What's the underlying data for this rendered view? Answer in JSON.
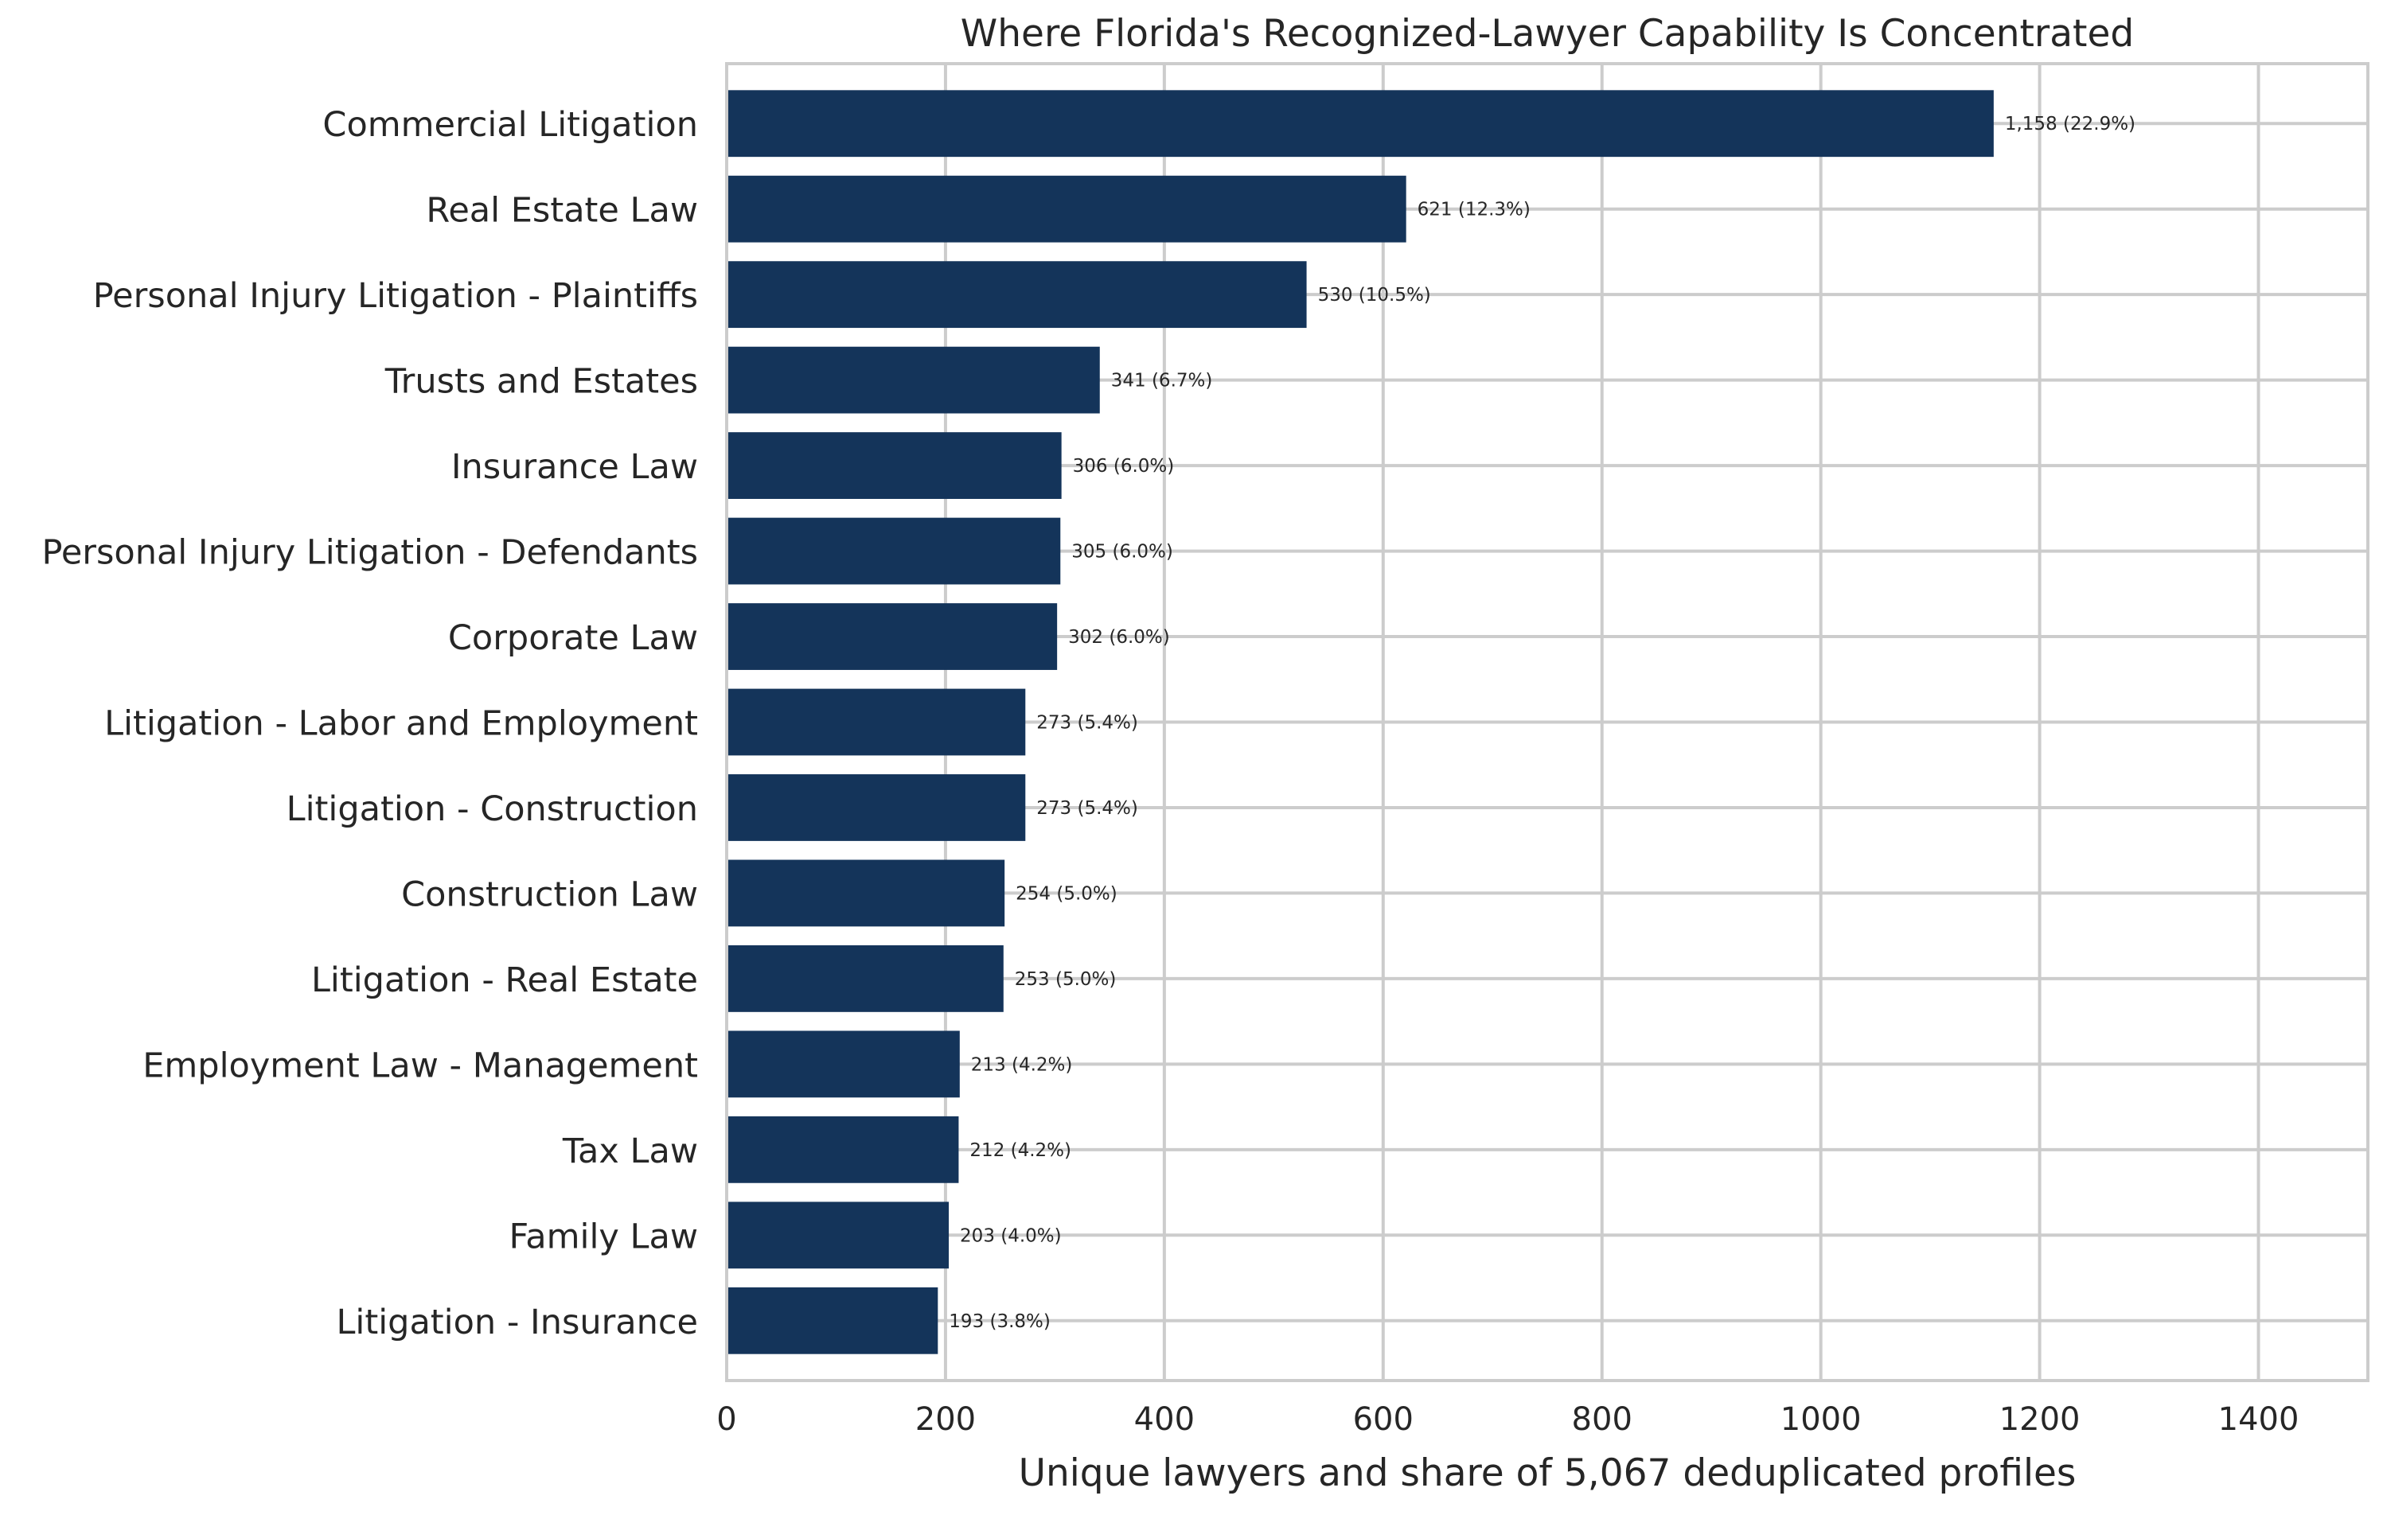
{
  "chart_data": {
    "type": "bar",
    "orientation": "horizontal",
    "title": "Where Florida's Recognized-Lawyer Capability Is Concentrated",
    "xlabel": "Unique lawyers and share of 5,067 deduplicated profiles",
    "ylabel": "",
    "xlim": [
      0,
      1500
    ],
    "xticks": [
      0,
      200,
      400,
      600,
      800,
      1000,
      1200,
      1400
    ],
    "grid": true,
    "bar_color": "#14345a",
    "categories": [
      "Commercial Litigation",
      "Real Estate Law",
      "Personal Injury Litigation - Plaintiffs",
      "Trusts and Estates",
      "Insurance Law",
      "Personal Injury Litigation - Defendants",
      "Corporate Law",
      "Litigation - Labor and Employment",
      "Litigation - Construction",
      "Construction Law",
      "Litigation - Real Estate",
      "Employment Law - Management",
      "Tax Law",
      "Family Law",
      "Litigation - Insurance"
    ],
    "values": [
      1158,
      621,
      530,
      341,
      306,
      305,
      302,
      273,
      273,
      254,
      253,
      213,
      212,
      203,
      193
    ],
    "data_labels": [
      "1,158 (22.9%)",
      "621 (12.3%)",
      "530 (10.5%)",
      "341 (6.7%)",
      "306 (6.0%)",
      "305 (6.0%)",
      "302 (6.0%)",
      "273 (5.4%)",
      "273 (5.4%)",
      "254 (5.0%)",
      "253 (5.0%)",
      "213 (4.2%)",
      "212 (4.2%)",
      "203 (4.0%)",
      "193 (3.8%)"
    ]
  }
}
